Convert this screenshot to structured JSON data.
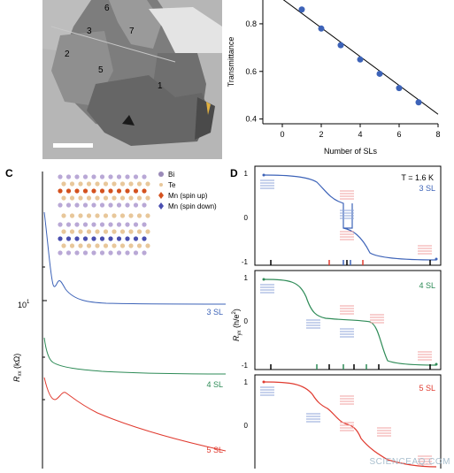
{
  "panel_a": {
    "region_labels": [
      "6",
      "3",
      "7",
      "2",
      "5",
      "1"
    ]
  },
  "panel_b": {
    "chart_data": {
      "type": "scatter",
      "xlabel": "Number of SLs",
      "ylabel": "Transmittance",
      "x_ticks": [
        "0",
        "2",
        "4",
        "6",
        "8"
      ],
      "y_ticks": [
        "0.4",
        "0.6",
        "0.8"
      ],
      "xlim": [
        -1,
        8
      ],
      "ylim": [
        0.38,
        0.9
      ],
      "x": [
        1,
        2,
        3,
        4,
        5,
        6,
        7
      ],
      "y": [
        0.86,
        0.78,
        0.71,
        0.65,
        0.59,
        0.53,
        0.47
      ],
      "fit_line": {
        "x": [
          -1,
          8
        ],
        "y": [
          0.965,
          0.42
        ]
      },
      "colors": {
        "marker": "#3d63b8",
        "line": "#000000"
      }
    }
  },
  "panel_c": {
    "label": "C",
    "legend": [
      {
        "text": "Bi",
        "color": "#9a8ab8"
      },
      {
        "text": "Te",
        "color": "#e8c79a"
      },
      {
        "text": "Mn (spin up)",
        "color": "#d4521f"
      },
      {
        "text": "Mn (spin down)",
        "color": "#4a4fb0"
      }
    ],
    "ylabel_main": "R",
    "ylabel_sub": "xx",
    "ylabel_unit": " (kΩ)",
    "y_tick": "10",
    "y_tick_exp": "1",
    "chart_data": {
      "type": "line",
      "series": [
        {
          "name": "3 SL",
          "color": "#3d63b8"
        },
        {
          "name": "4 SL",
          "color": "#2e8b57"
        },
        {
          "name": "5 SL",
          "color": "#e03a2f"
        }
      ]
    }
  },
  "panel_d": {
    "label": "D",
    "temperature": "T = 1.6 K",
    "ylabel_main": "R",
    "ylabel_sub": "yx",
    "ylabel_unit": " (h/e",
    "ylabel_exp": "2",
    "ylabel_close": ")",
    "y_ticks": [
      "1",
      "0",
      "-1"
    ],
    "chart_data": {
      "type": "line",
      "series": [
        {
          "name": "3 SL",
          "color": "#3d63b8"
        },
        {
          "name": "4 SL",
          "color": "#2e8b57"
        },
        {
          "name": "5 SL",
          "color": "#e03a2f"
        }
      ]
    }
  },
  "watermark": "SCIENCEAQ.COM"
}
